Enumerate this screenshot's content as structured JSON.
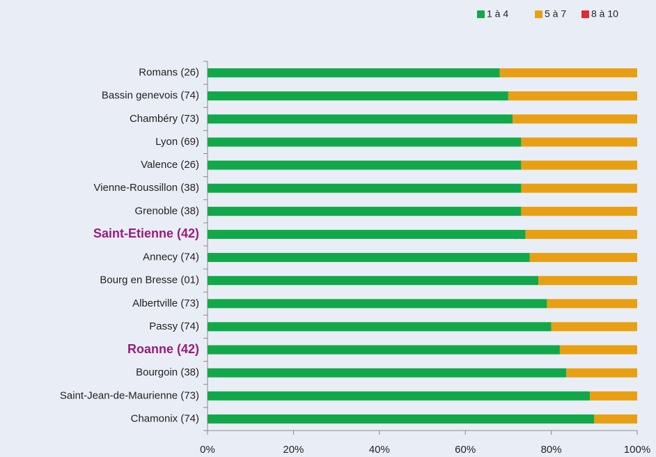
{
  "chart_data": {
    "type": "stacked-bar-horizontal",
    "categories": [
      "Romans (26)",
      "Bassin genevois (74)",
      "Chambéry (73)",
      "Lyon (69)",
      "Valence (26)",
      "Vienne-Roussillon (38)",
      "Grenoble (38)",
      "Saint-Etienne (42)",
      "Annecy (74)",
      "Bourg en Bresse (01)",
      "Albertville (73)",
      "Passy (74)",
      "Roanne (42)",
      "Bourgoin (38)",
      "Saint-Jean-de-Maurienne (73)",
      "Chamonix (74)"
    ],
    "highlighted": [
      false,
      false,
      false,
      false,
      false,
      false,
      false,
      true,
      false,
      false,
      false,
      false,
      true,
      false,
      false,
      false
    ],
    "highlight_color": "#9b1a7e",
    "series": [
      {
        "name": "1 à 4",
        "color": "#11a84a",
        "values": [
          68,
          70,
          71,
          73,
          73,
          73,
          73,
          74,
          75,
          77,
          79,
          80,
          82,
          83.5,
          89,
          90
        ]
      },
      {
        "name": "5 à 7",
        "color": "#e8a012",
        "values": [
          32,
          30,
          29,
          27,
          27,
          27,
          27,
          26,
          25,
          23,
          21,
          20,
          18,
          16.5,
          11,
          10
        ]
      },
      {
        "name": "8 à 10",
        "color": "#e02a2f",
        "values": [
          0,
          0,
          0,
          0,
          0,
          0,
          0,
          0,
          0,
          0,
          0,
          0,
          0,
          0,
          0,
          0
        ]
      }
    ],
    "xlim": [
      0,
      100
    ],
    "xticks": [
      {
        "value": 0,
        "label": "0%"
      },
      {
        "value": 20,
        "label": "20%"
      },
      {
        "value": 40,
        "label": "40%"
      },
      {
        "value": 60,
        "label": "60%"
      },
      {
        "value": 80,
        "label": "80%"
      },
      {
        "value": 100,
        "label": "100%"
      }
    ],
    "legend": "top-right"
  }
}
